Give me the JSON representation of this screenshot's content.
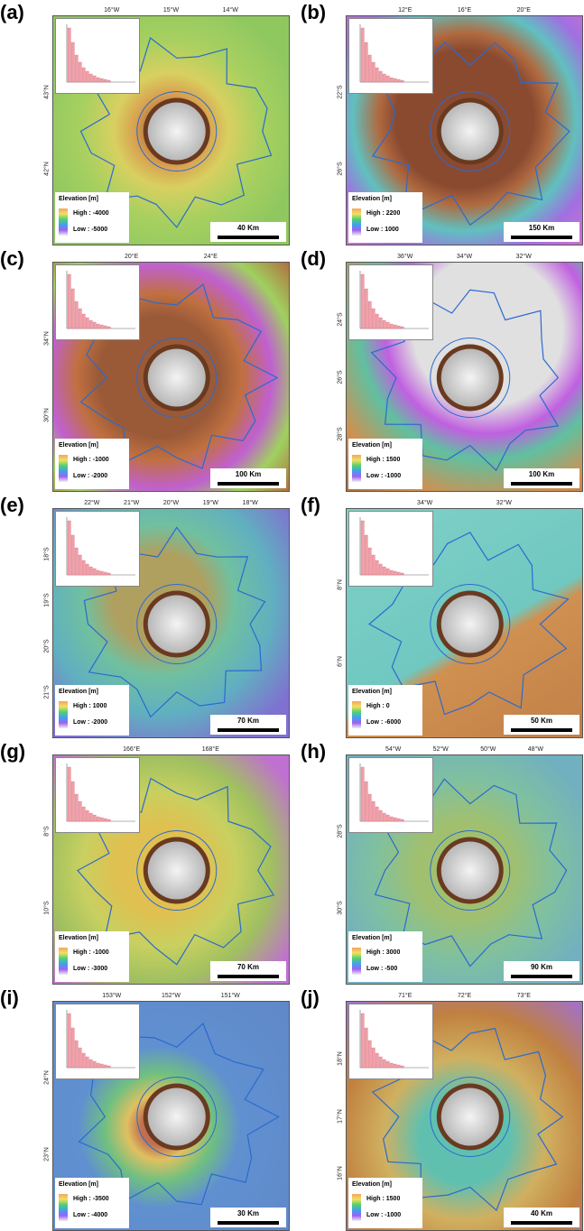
{
  "panels": [
    {
      "label": "(a)",
      "lon_ticks": [
        "16°W",
        "15°W",
        "14°W"
      ],
      "lat_ticks": [
        "43°N",
        "42°N"
      ],
      "legend_title": "Elevation [m]",
      "legend_high": "High : -4000",
      "legend_low": "Low : -5000",
      "scale": "40 Km"
    },
    {
      "label": "(b)",
      "lon_ticks": [
        "12°E",
        "16°E",
        "20°E"
      ],
      "lat_ticks": [
        "22°S",
        "26°S"
      ],
      "legend_title": "Elevation [m]",
      "legend_high": "High : 2200",
      "legend_low": "Low : 1000",
      "scale": "150 Km"
    },
    {
      "label": "(c)",
      "lon_ticks": [
        "20°E",
        "24°E"
      ],
      "lat_ticks": [
        "34°N",
        "30°N"
      ],
      "legend_title": "Elevation [m]",
      "legend_high": "High : -1000",
      "legend_low": "Low : -2000",
      "scale": "100 Km"
    },
    {
      "label": "(d)",
      "lon_ticks": [
        "36°W",
        "34°W",
        "32°W"
      ],
      "lat_ticks": [
        "24°S",
        "26°S",
        "28°S"
      ],
      "legend_title": "Elevation [m]",
      "legend_high": "High : 1500",
      "legend_low": "Low : -1000",
      "scale": "100 Km"
    },
    {
      "label": "(e)",
      "lon_ticks": [
        "22°W",
        "21°W",
        "20°W",
        "19°W",
        "18°W"
      ],
      "lat_ticks": [
        "18°S",
        "19°S",
        "20°S",
        "21°S"
      ],
      "legend_title": "Elevation [m]",
      "legend_high": "High : 1000",
      "legend_low": "Low : -2000",
      "scale": "70 Km"
    },
    {
      "label": "(f)",
      "lon_ticks": [
        "34°W",
        "32°W"
      ],
      "lat_ticks": [
        "8°N",
        "6°N"
      ],
      "legend_title": "Elevation [m]",
      "legend_high": "High : 0",
      "legend_low": "Low : -6000",
      "scale": "50 Km"
    },
    {
      "label": "(g)",
      "lon_ticks": [
        "166°E",
        "168°E"
      ],
      "lat_ticks": [
        "8°S",
        "10°S"
      ],
      "legend_title": "Elevation [m]",
      "legend_high": "High : -1000",
      "legend_low": "Low : -3000",
      "scale": "70 Km"
    },
    {
      "label": "(h)",
      "lon_ticks": [
        "54°W",
        "52°W",
        "50°W",
        "48°W"
      ],
      "lat_ticks": [
        "28°S",
        "30°S"
      ],
      "legend_title": "Elevation [m]",
      "legend_high": "High : 3000",
      "legend_low": "Low : -500",
      "scale": "90 Km"
    },
    {
      "label": "(i)",
      "lon_ticks": [
        "153°W",
        "152°W",
        "151°W"
      ],
      "lat_ticks": [
        "24°N",
        "23°N"
      ],
      "legend_title": "Elevation [m]",
      "legend_high": "High : -3500",
      "legend_low": "Low : -4000",
      "scale": "30 Km"
    },
    {
      "label": "(j)",
      "lon_ticks": [
        "71°E",
        "72°E",
        "73°E"
      ],
      "lat_ticks": [
        "18°N",
        "17°N",
        "16°N"
      ],
      "legend_title": "Elevation [m]",
      "legend_high": "High : 1500",
      "legend_low": "Low : -1000",
      "scale": "40 Km"
    }
  ]
}
